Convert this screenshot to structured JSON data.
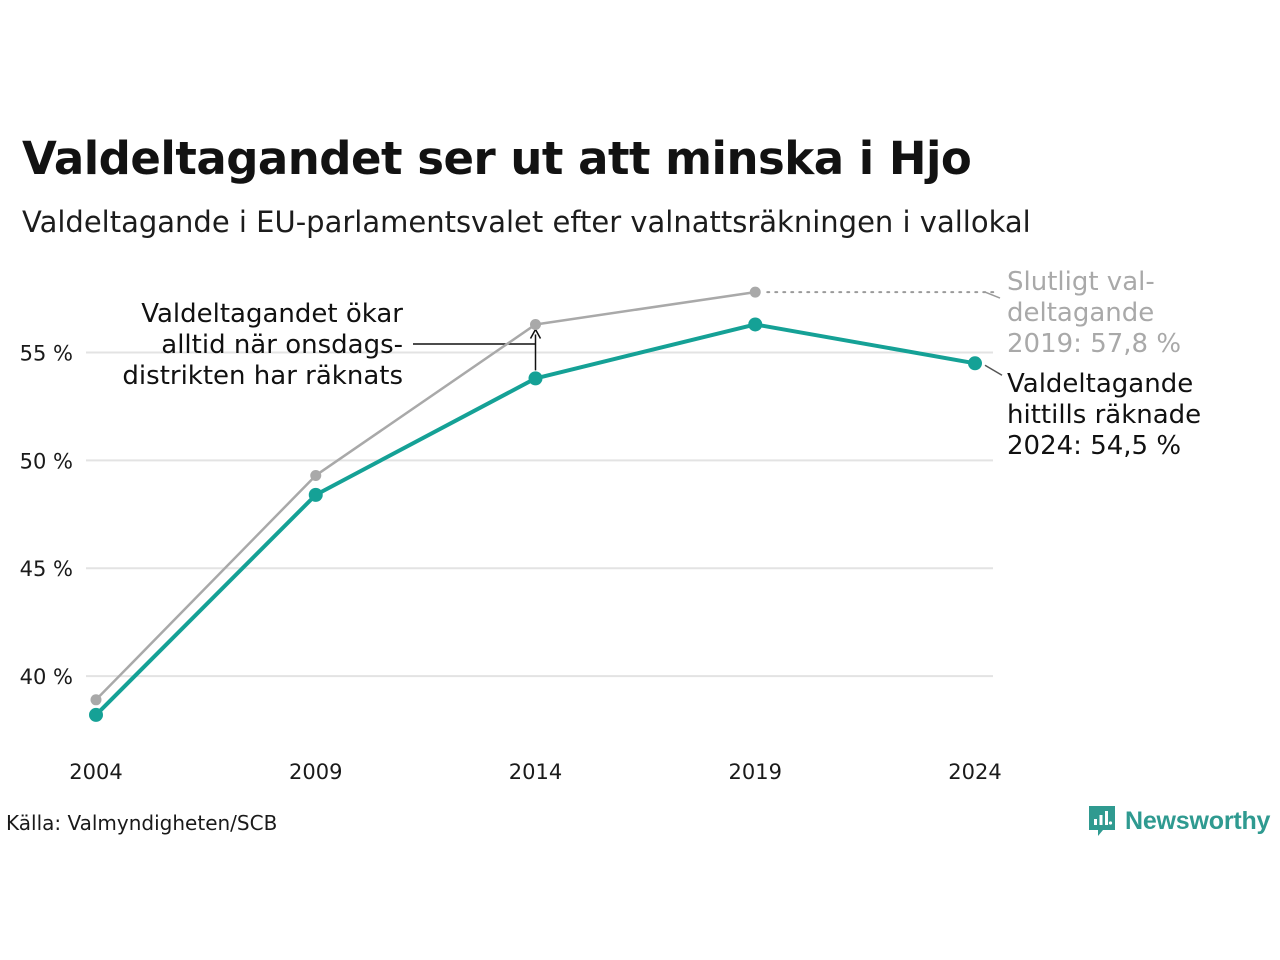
{
  "title": "Valdeltagandet ser ut att minska i Hjo",
  "subtitle": "Valdeltagande i EU-parlamentsvalet efter valnattsräkningen i vallokal",
  "source": "Källa: Valmyndigheten/SCB",
  "brand": "Newsworthy",
  "colors": {
    "final": "#a9a9a9",
    "counted": "#15a196",
    "grid": "#e3e3e3",
    "text": "#111111",
    "brand": "#2f9a90"
  },
  "chart_data": {
    "type": "line",
    "x": [
      "2004",
      "2009",
      "2014",
      "2019",
      "2024"
    ],
    "ylim": [
      37.5,
      58.5
    ],
    "yticks": [
      40,
      45,
      50,
      55
    ],
    "ytick_labels": [
      "40 %",
      "45 %",
      "50 %",
      "55 %"
    ],
    "grid": true,
    "series": [
      {
        "key": "final",
        "values": [
          38.9,
          49.3,
          56.3,
          57.8,
          null
        ]
      },
      {
        "key": "counted",
        "values": [
          38.2,
          48.4,
          53.8,
          56.3,
          54.5
        ]
      }
    ],
    "annotations": {
      "final_label": [
        "Slutligt val-",
        "deltagande",
        "2019: 57,8 %"
      ],
      "counted_label": [
        "Valdeltagande",
        "hittills räknade",
        "2024: 54,5 %"
      ],
      "note": [
        "Valdeltagandet ökar",
        "alltid när onsdags-",
        "distrikten har räknats"
      ]
    }
  }
}
